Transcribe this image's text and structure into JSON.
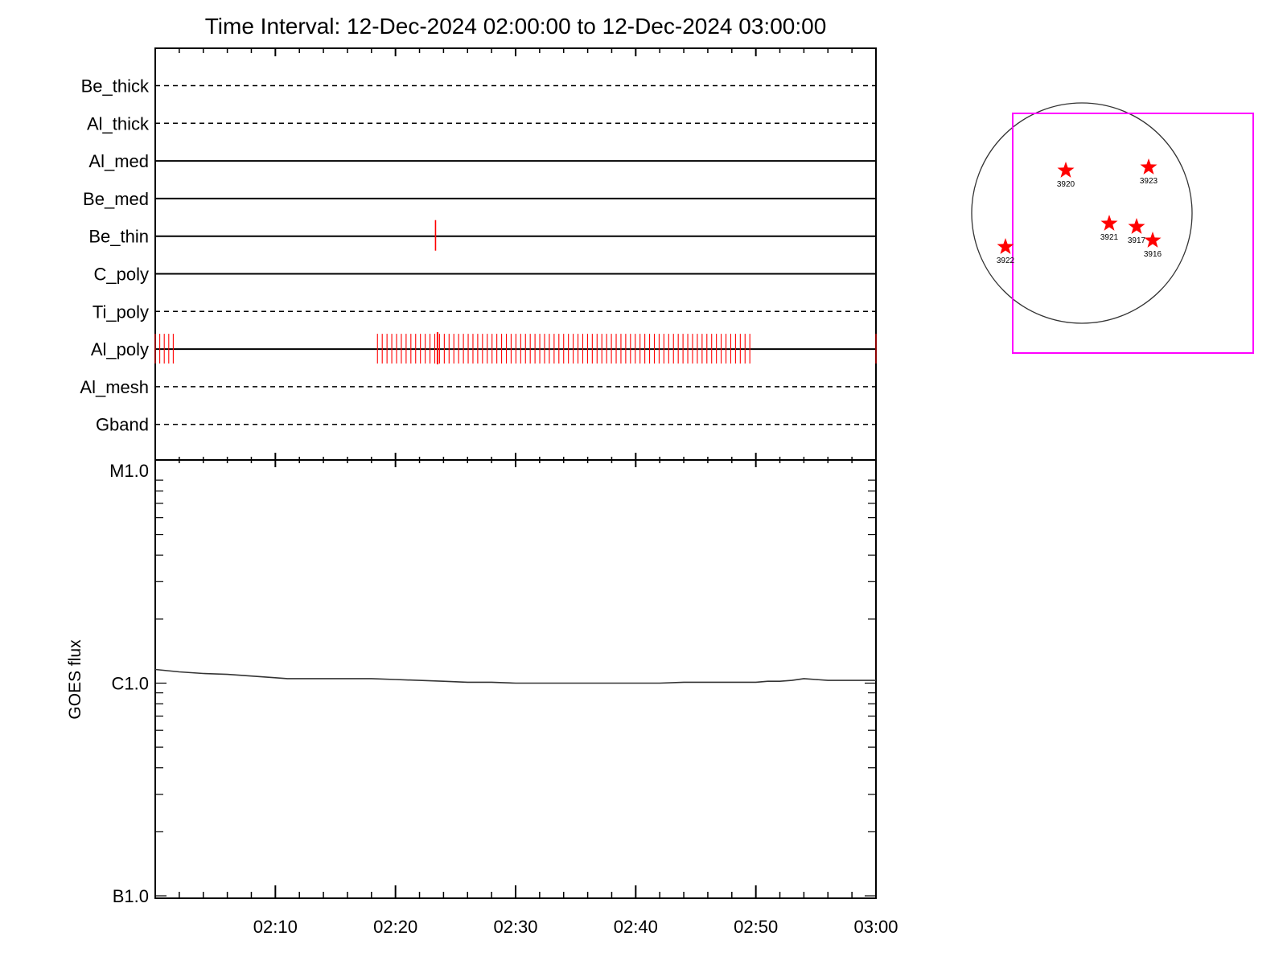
{
  "title": "Time Interval: 12-Dec-2024 02:00:00 to 12-Dec-2024 03:00:00",
  "chart_data": [
    {
      "type": "timeline",
      "time_range": [
        "02:00",
        "03:00"
      ],
      "rows": [
        {
          "name": "Be_thick",
          "style": "dashed",
          "events": []
        },
        {
          "name": "Al_thick",
          "style": "dashed",
          "events": []
        },
        {
          "name": "Al_med",
          "style": "solid",
          "events": []
        },
        {
          "name": "Be_med",
          "style": "solid",
          "events": []
        },
        {
          "name": "Be_thin",
          "style": "solid",
          "events": [
            "02:23:20"
          ]
        },
        {
          "name": "C_poly",
          "style": "solid",
          "events": []
        },
        {
          "name": "Ti_poly",
          "style": "dashed",
          "events": []
        },
        {
          "name": "Al_poly",
          "style": "solid",
          "events": [],
          "event_groups": [
            {
              "start_min": 0.0,
              "end_min": 1.5,
              "count": 5
            },
            {
              "start_min": 18.5,
              "end_min": 49.5,
              "count": 79
            },
            {
              "start_min": 60.0,
              "end_min": 60.0,
              "count": 1
            }
          ],
          "tall_events_min": [
            23.5
          ]
        },
        {
          "name": "Al_mesh",
          "style": "dashed",
          "events": []
        },
        {
          "name": "Gband",
          "style": "dashed",
          "events": []
        }
      ],
      "event_color": "#ff0000"
    },
    {
      "type": "line",
      "ylabel": "GOES flux",
      "yscale": "log",
      "yticks": [
        "B1.0",
        "C1.0",
        "M1.0"
      ],
      "ylim": [
        1e-07,
        1e-05
      ],
      "x_tick_labels": [
        "02:10",
        "02:20",
        "02:30",
        "02:40",
        "02:50",
        "03:00"
      ],
      "xlim_minutes": [
        0,
        60
      ],
      "series": [
        {
          "x_minutes": [
            0,
            2,
            4,
            6,
            8,
            10,
            11,
            12,
            14,
            16,
            18,
            20,
            22,
            24,
            26,
            28,
            30,
            32,
            34,
            36,
            38,
            40,
            42,
            44,
            46,
            48,
            50,
            51,
            52,
            53,
            54,
            55,
            56,
            58,
            60
          ],
          "y": [
            1.16e-06,
            1.13e-06,
            1.11e-06,
            1.1e-06,
            1.08e-06,
            1.06e-06,
            1.05e-06,
            1.05e-06,
            1.05e-06,
            1.05e-06,
            1.05e-06,
            1.04e-06,
            1.03e-06,
            1.02e-06,
            1.01e-06,
            1.01e-06,
            1e-06,
            1e-06,
            1e-06,
            1e-06,
            1e-06,
            1e-06,
            1e-06,
            1.01e-06,
            1.01e-06,
            1.01e-06,
            1.01e-06,
            1.02e-06,
            1.02e-06,
            1.03e-06,
            1.05e-06,
            1.04e-06,
            1.03e-06,
            1.03e-06,
            1.03e-06
          ],
          "color": "#333333"
        }
      ]
    }
  ],
  "sun_map": {
    "regions": [
      "3920",
      "3923",
      "3921",
      "3917",
      "3916",
      "3922"
    ],
    "marker_color": "#ff0000",
    "fov_color": "#ff00ff"
  }
}
